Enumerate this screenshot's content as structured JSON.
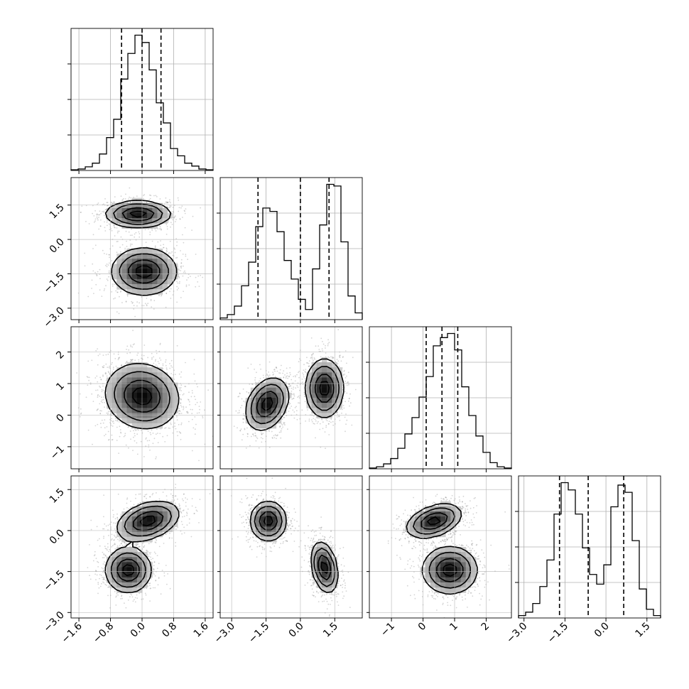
{
  "chart_data": {
    "type": "corner",
    "title": "",
    "n_params": 4,
    "grid": true,
    "axes": [
      {
        "lim": [
          -1.8,
          1.8
        ],
        "ticks": [
          -1.6,
          -0.8,
          0.0,
          0.8,
          1.6
        ],
        "tick_labels": [
          "−1.6",
          "−0.8",
          "0.0",
          "0.8",
          "1.6"
        ]
      },
      {
        "lim": [
          -3.5,
          2.7
        ],
        "ticks": [
          -3.0,
          -1.5,
          0.0,
          1.5
        ],
        "tick_labels": [
          "−3.0",
          "−1.5",
          "0.0",
          "1.5"
        ]
      },
      {
        "lim": [
          -1.7,
          2.8
        ],
        "ticks": [
          -1,
          0,
          1,
          2
        ],
        "tick_labels": [
          "−1",
          "0",
          "1",
          "2"
        ]
      },
      {
        "lim": [
          -3.2,
          2.0
        ],
        "ticks": [
          -3.0,
          -1.5,
          0.0,
          1.5
        ],
        "tick_labels": [
          "−3.0",
          "−1.5",
          "0.0",
          "1.5"
        ]
      }
    ],
    "histograms": [
      {
        "param": 0,
        "quantiles": [
          -0.52,
          0.0,
          0.48
        ],
        "bin_edges": [
          -1.8,
          -1.62,
          -1.44,
          -1.26,
          -1.08,
          -0.9,
          -0.72,
          -0.54,
          -0.36,
          -0.18,
          0.0,
          0.18,
          0.36,
          0.54,
          0.72,
          0.9,
          1.08,
          1.26,
          1.44,
          1.62,
          1.8
        ],
        "counts": [
          2,
          4,
          10,
          20,
          45,
          90,
          140,
          250,
          320,
          370,
          350,
          275,
          185,
          130,
          60,
          40,
          20,
          12,
          4,
          2
        ]
      },
      {
        "param": 1,
        "quantiles": [
          -1.85,
          0.0,
          1.25
        ],
        "bin_edges": [
          -3.5,
          -3.19,
          -2.88,
          -2.57,
          -2.26,
          -1.95,
          -1.64,
          -1.33,
          -1.02,
          -0.71,
          -0.4,
          -0.09,
          0.22,
          0.53,
          0.84,
          1.15,
          1.46,
          1.77,
          2.08,
          2.39,
          2.7
        ],
        "counts": [
          5,
          15,
          40,
          100,
          170,
          275,
          330,
          320,
          260,
          175,
          120,
          60,
          30,
          150,
          280,
          400,
          395,
          230,
          70,
          20
        ]
      },
      {
        "param": 2,
        "quantiles": [
          0.1,
          0.6,
          1.1
        ],
        "bin_edges": [
          -1.7,
          -1.475,
          -1.25,
          -1.025,
          -0.8,
          -0.575,
          -0.35,
          -0.125,
          0.1,
          0.325,
          0.55,
          0.775,
          1.0,
          1.225,
          1.45,
          1.675,
          1.9,
          2.125,
          2.35,
          2.575,
          2.8
        ],
        "counts": [
          2,
          5,
          12,
          25,
          50,
          85,
          125,
          175,
          225,
          300,
          320,
          330,
          290,
          200,
          130,
          80,
          40,
          15,
          5,
          2
        ]
      },
      {
        "param": 3,
        "quantiles": [
          -1.7,
          -0.65,
          0.65
        ],
        "bin_edges": [
          -3.2,
          -2.94,
          -2.68,
          -2.42,
          -2.16,
          -1.9,
          -1.64,
          -1.38,
          -1.12,
          -0.86,
          -0.6,
          -0.34,
          -0.08,
          0.18,
          0.44,
          0.7,
          0.96,
          1.22,
          1.48,
          1.74,
          2.0
        ],
        "counts": [
          5,
          12,
          30,
          65,
          120,
          215,
          280,
          265,
          215,
          145,
          90,
          70,
          110,
          230,
          275,
          260,
          160,
          60,
          18,
          5
        ]
      }
    ],
    "pairs": [
      {
        "x_param": 0,
        "y_param": 1,
        "clusters": [
          {
            "center": [
              -0.1,
              1.1
            ],
            "sd": [
              0.4,
              0.28
            ],
            "rho": 0.0,
            "weight": 0.5
          },
          {
            "center": [
              0.05,
              -1.4
            ],
            "sd": [
              0.4,
              0.5
            ],
            "rho": 0.0,
            "weight": 0.5
          }
        ]
      },
      {
        "x_param": 0,
        "y_param": 2,
        "clusters": [
          {
            "center": [
              0.0,
              0.6
            ],
            "sd": [
              0.45,
              0.5
            ],
            "rho": -0.1,
            "weight": 1.0
          }
        ]
      },
      {
        "x_param": 1,
        "y_param": 2,
        "clusters": [
          {
            "center": [
              -1.45,
              0.35
            ],
            "sd": [
              0.45,
              0.4
            ],
            "rho": 0.3,
            "weight": 0.5
          },
          {
            "center": [
              1.05,
              0.85
            ],
            "sd": [
              0.4,
              0.45
            ],
            "rho": 0.0,
            "weight": 0.5
          }
        ]
      },
      {
        "x_param": 0,
        "y_param": 3,
        "clusters": [
          {
            "center": [
              0.15,
              0.35
            ],
            "sd": [
              0.38,
              0.35
            ],
            "rho": 0.35,
            "weight": 0.5
          },
          {
            "center": [
              -0.35,
              -1.45
            ],
            "sd": [
              0.28,
              0.4
            ],
            "rho": 0.0,
            "weight": 0.5
          }
        ]
      },
      {
        "x_param": 1,
        "y_param": 3,
        "clusters": [
          {
            "center": [
              -1.4,
              0.35
            ],
            "sd": [
              0.38,
              0.35
            ],
            "rho": 0.0,
            "weight": 0.5
          },
          {
            "center": [
              1.05,
              -1.35
            ],
            "sd": [
              0.28,
              0.45
            ],
            "rho": -0.3,
            "weight": 0.5
          }
        ]
      },
      {
        "x_param": 2,
        "y_param": 3,
        "clusters": [
          {
            "center": [
              0.35,
              0.35
            ],
            "sd": [
              0.42,
              0.3
            ],
            "rho": 0.4,
            "weight": 0.5
          },
          {
            "center": [
              0.85,
              -1.45
            ],
            "sd": [
              0.42,
              0.42
            ],
            "rho": 0.0,
            "weight": 0.5
          }
        ]
      }
    ]
  }
}
